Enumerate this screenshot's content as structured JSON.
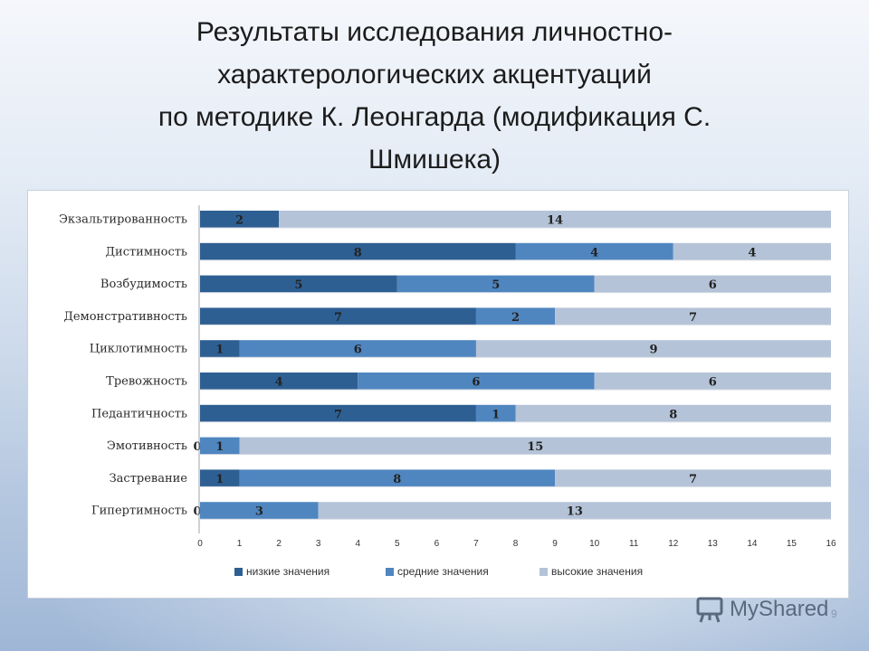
{
  "slide": {
    "title_lines": [
      "Результаты исследования личностно-",
      "характерологических акцентуаций",
      "по методике   К. Леонгарда (модификация С.",
      "Шмишека)"
    ],
    "watermark": "MyShared",
    "page_number": "9"
  },
  "chart_data": {
    "type": "bar",
    "orientation": "horizontal",
    "stacked": true,
    "categories": [
      "Экзальтированность",
      "Дистимность",
      "Возбудимость",
      "Демонстративность",
      "Циклотимность",
      "Тревожность",
      "Педантичность",
      "Эмотивность",
      "Застревание",
      "Гипертимность"
    ],
    "series": [
      {
        "name": "низкие значения",
        "color": "#2e5f92",
        "values": [
          2,
          8,
          5,
          7,
          1,
          4,
          7,
          0,
          1,
          0
        ]
      },
      {
        "name": "средние значения",
        "color": "#4f86c0",
        "values": [
          0,
          4,
          5,
          2,
          6,
          6,
          1,
          1,
          8,
          3
        ]
      },
      {
        "name": "высокие значения",
        "color": "#b4c3d7",
        "values": [
          14,
          4,
          6,
          7,
          9,
          6,
          8,
          15,
          7,
          13
        ]
      }
    ],
    "xlim": [
      0,
      16
    ],
    "xticks": [
      0,
      1,
      2,
      3,
      4,
      5,
      6,
      7,
      8,
      9,
      10,
      11,
      12,
      13,
      14,
      15,
      16
    ],
    "legend_position": "bottom",
    "grid": false
  }
}
